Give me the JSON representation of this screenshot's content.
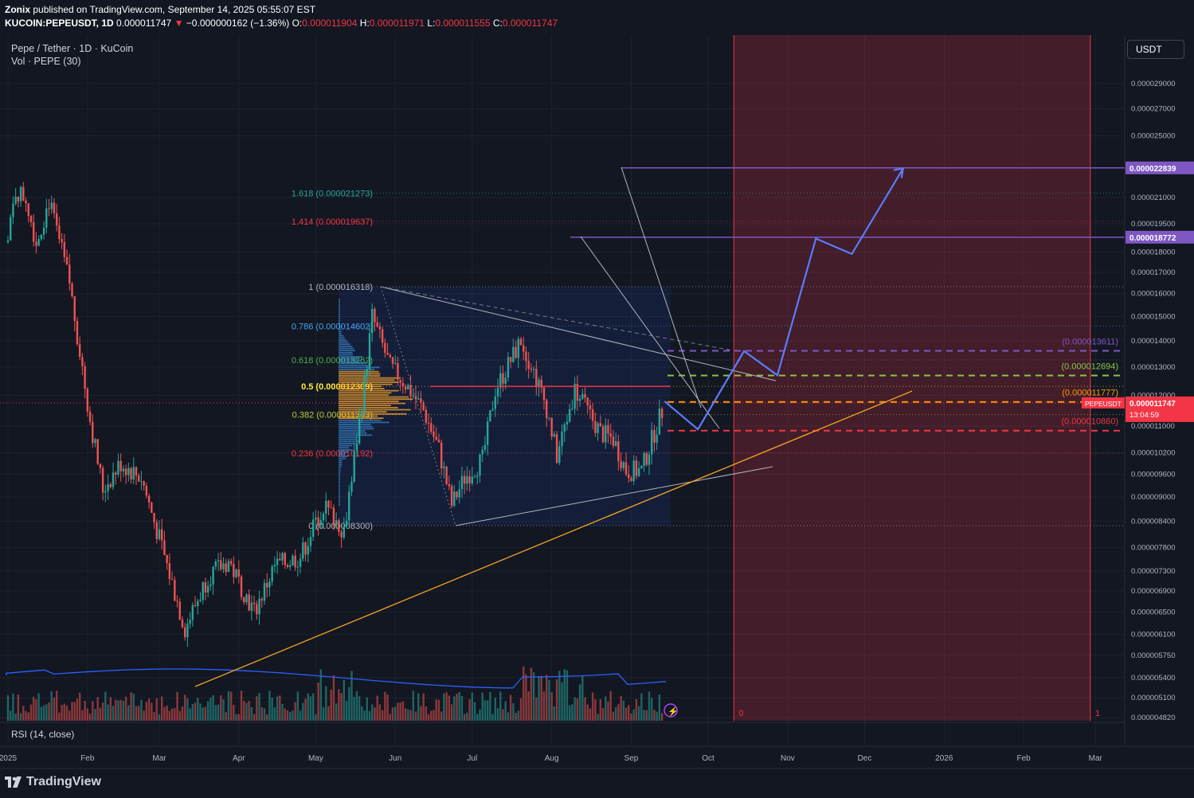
{
  "header": {
    "author": "Zonix",
    "published": "published on TradingView.com, September 14, 2025 05:55:07 EST",
    "symbol": "KUCOIN:PEPEUSDT, 1D",
    "last": "0.000011747",
    "change": "−0.000000162 (−1.36%)",
    "open_label": "O:",
    "open": "0.000011904",
    "high_label": "H:",
    "high": "0.000011971",
    "low_label": "L:",
    "low": "0.000011555",
    "close_label": "C:",
    "close": "0.000011747"
  },
  "legend": {
    "title": "Pepe / Tether · 1D · KuCoin",
    "volume": "Vol · PEPE (30)"
  },
  "currency_button": "USDT",
  "rsi_label": "RSI (14, close)",
  "logo": "TradingView",
  "colors": {
    "background": "#131722",
    "up": "#26a69a",
    "down": "#ef5350",
    "fib_0": "#b2b5be",
    "fib_236": "#f23645",
    "fib_382": "#c0ca33",
    "fib_5": "#ffeb3b",
    "fib_618": "#4caf50",
    "fib_786": "#42a5f5",
    "fib_1414": "#f23645",
    "fib_1618": "#26a69a",
    "target": "#7e57c2",
    "projection": "#5b7bff",
    "trendline": "#f5a623"
  },
  "chart_data": {
    "type": "candlestick",
    "title": "Pepe / Tether · 1D · KuCoin",
    "x_axis": {
      "ticks": [
        "2025",
        "Feb",
        "Mar",
        "Apr",
        "May",
        "Jun",
        "Jul",
        "Aug",
        "Sep",
        "Oct",
        "Nov",
        "Dec",
        "2026",
        "Feb",
        "Mar"
      ]
    },
    "y_axis": {
      "scale": "log",
      "ticks": [
        "0.000029000",
        "0.000027000",
        "0.000025000",
        "0.000021000",
        "0.000019500",
        "0.000018000",
        "0.000017000",
        "0.000016000",
        "0.000015000",
        "0.000014000",
        "0.000013000",
        "0.000012000",
        "0.000011000",
        "0.000010200",
        "0.000009600",
        "0.000009000",
        "0.000008400",
        "0.000007800",
        "0.000007300",
        "0.000006900",
        "0.000006500",
        "0.000006100",
        "0.000005750",
        "0.000005400",
        "0.000005100",
        "0.000004820"
      ],
      "ylim": [
        4.82e-06,
        3.05e-05
      ]
    },
    "price_tags": [
      {
        "value": "0.000022839",
        "color": "#7e57c2"
      },
      {
        "value": "0.000018772",
        "color": "#7e57c2"
      },
      {
        "value": "0.000011747",
        "color": "#f23645",
        "symbol": "PEPEUSDT",
        "countdown": "13:04:59"
      }
    ],
    "fib_levels": [
      {
        "ratio": "1.618",
        "label": "1.618 (0.000021273)",
        "value": 2.1273e-05
      },
      {
        "ratio": "1.414",
        "label": "1.414 (0.000019637)",
        "value": 1.9637e-05
      },
      {
        "ratio": "1",
        "label": "1 (0.000016318)",
        "value": 1.6318e-05
      },
      {
        "ratio": "0.786",
        "label": "0.786 (0.000014602)",
        "value": 1.4602e-05
      },
      {
        "ratio": "0.618",
        "label": "0.618 (0.000013262)",
        "value": 1.3262e-05
      },
      {
        "ratio": "0.5",
        "label": "0.5 (0.000012309)",
        "value": 1.2309e-05
      },
      {
        "ratio": "0.382",
        "label": "0.382 (0.000011363)",
        "value": 1.1363e-05
      },
      {
        "ratio": "0.236",
        "label": "0.236 (0.000010192)",
        "value": 1.0192e-05
      },
      {
        "ratio": "0",
        "label": "0 (0.000008300)",
        "value": 8.3e-06
      }
    ],
    "horizontal_levels": [
      {
        "label": "(0.000013611)",
        "value": 1.3611e-05
      },
      {
        "label": "(0.000012694)",
        "value": 1.2694e-05
      },
      {
        "label": "(0.000011777)",
        "value": 1.1777e-05
      },
      {
        "label": "(0.000010860)",
        "value": 1.086e-05
      }
    ],
    "projection_path": [
      {
        "date": "2025-09-14",
        "value": 1.18e-05
      },
      {
        "date": "2025-09-27",
        "value": 1.09e-05
      },
      {
        "date": "2025-10-15",
        "value": 1.36e-05
      },
      {
        "date": "2025-10-28",
        "value": 1.27e-05
      },
      {
        "date": "2025-11-12",
        "value": 1.87e-05
      },
      {
        "date": "2025-11-26",
        "value": 1.79e-05
      },
      {
        "date": "2025-12-16",
        "value": 2.28e-05
      }
    ],
    "range_markers": [
      "0",
      "1"
    ]
  }
}
